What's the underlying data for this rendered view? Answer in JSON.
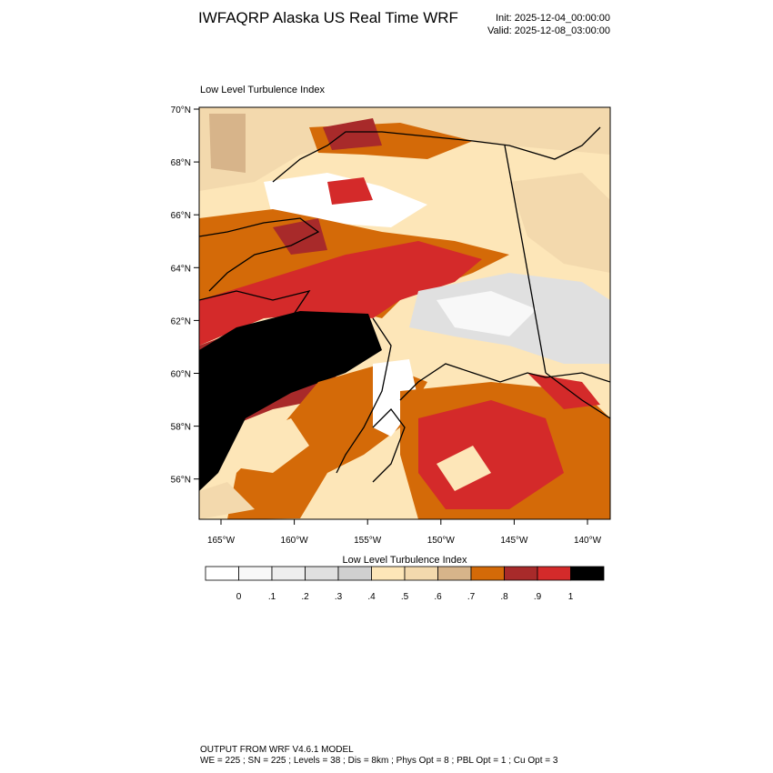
{
  "header": {
    "title": "IWFAQRP Alaska US Real Time WRF",
    "init": "Init: 2025-12-04_00:00:00",
    "valid": "Valid: 2025-12-08_03:00:00"
  },
  "panel": {
    "title": "Low Level Turbulence Index",
    "lat_labels": [
      "70°N",
      "68°N",
      "66°N",
      "64°N",
      "62°N",
      "60°N",
      "58°N",
      "56°N"
    ],
    "lon_labels": [
      "165°W",
      "160°W",
      "155°W",
      "150°W",
      "145°W",
      "140°W"
    ]
  },
  "colorbar": {
    "title": "Low Level Turbulence Index",
    "colors": [
      "#ffffff",
      "#f8f8f8",
      "#eeeeee",
      "#e0e0e0",
      "#d0d0d0",
      "#fde6b8",
      "#f3d9ad",
      "#d7b48a",
      "#d46a08",
      "#a82a2a",
      "#d42a2a",
      "#000000"
    ],
    "labels": [
      "0",
      ".1",
      ".2",
      ".3",
      ".4",
      ".5",
      ".6",
      ".7",
      ".8",
      ".9",
      "1"
    ]
  },
  "footer": {
    "line1": "OUTPUT FROM WRF V4.6.1 MODEL",
    "line2": "WE = 225 ; SN = 225 ; Levels = 38 ; Dis = 8km ; Phys Opt = 8 ; PBL Opt = 1 ; Cu Opt = 3"
  }
}
